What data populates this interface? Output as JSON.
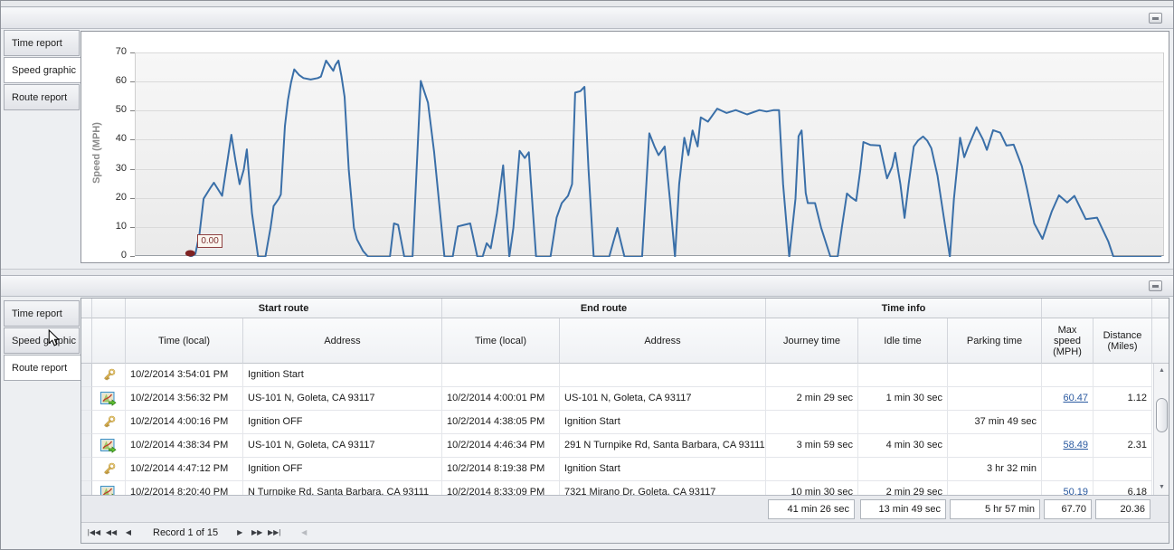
{
  "tabs": {
    "items": [
      "Time report",
      "Speed graphic",
      "Route report"
    ],
    "top_selected": "Speed graphic",
    "bottom_selected": "Route report"
  },
  "chart_data": {
    "type": "line",
    "ylabel": "Speed (MPH)",
    "ylim": [
      0,
      70
    ],
    "yticks": [
      0,
      10,
      20,
      30,
      40,
      50,
      60,
      70
    ],
    "grid": true,
    "line_color": "#3a6fa8",
    "marker": {
      "x_frac": 0.053,
      "value": 0,
      "label": "0.00",
      "color": "#7e2222"
    },
    "series": [
      {
        "name": "Speed",
        "points": [
          [
            0.053,
            0
          ],
          [
            0.058,
            1
          ],
          [
            0.062,
            8
          ],
          [
            0.066,
            20
          ],
          [
            0.073,
            24
          ],
          [
            0.076,
            25.5
          ],
          [
            0.084,
            21
          ],
          [
            0.09,
            35
          ],
          [
            0.093,
            42
          ],
          [
            0.097,
            33
          ],
          [
            0.101,
            25
          ],
          [
            0.105,
            30
          ],
          [
            0.108,
            37
          ],
          [
            0.113,
            15
          ],
          [
            0.119,
            0
          ],
          [
            0.126,
            0
          ],
          [
            0.131,
            10
          ],
          [
            0.134,
            17.5
          ],
          [
            0.139,
            20
          ],
          [
            0.141,
            21.5
          ],
          [
            0.145,
            45
          ],
          [
            0.148,
            54
          ],
          [
            0.151,
            60
          ],
          [
            0.154,
            64.5
          ],
          [
            0.159,
            62.5
          ],
          [
            0.163,
            61.5
          ],
          [
            0.17,
            61
          ],
          [
            0.177,
            61.5
          ],
          [
            0.18,
            62
          ],
          [
            0.185,
            67.5
          ],
          [
            0.189,
            65.5
          ],
          [
            0.192,
            64
          ],
          [
            0.194,
            66
          ],
          [
            0.197,
            67.5
          ],
          [
            0.2,
            62
          ],
          [
            0.203,
            55
          ],
          [
            0.207,
            30
          ],
          [
            0.212,
            10
          ],
          [
            0.215,
            6
          ],
          [
            0.221,
            2
          ],
          [
            0.226,
            0
          ],
          [
            0.247,
            0
          ],
          [
            0.251,
            11.5
          ],
          [
            0.255,
            11
          ],
          [
            0.261,
            0
          ],
          [
            0.269,
            0
          ],
          [
            0.277,
            60.5
          ],
          [
            0.284,
            53
          ],
          [
            0.29,
            36
          ],
          [
            0.3,
            0
          ],
          [
            0.308,
            0
          ],
          [
            0.313,
            10.5
          ],
          [
            0.319,
            11
          ],
          [
            0.325,
            11.5
          ],
          [
            0.332,
            0
          ],
          [
            0.337,
            0
          ],
          [
            0.341,
            4.7
          ],
          [
            0.345,
            3
          ],
          [
            0.351,
            15
          ],
          [
            0.357,
            31.5
          ],
          [
            0.363,
            0
          ],
          [
            0.367,
            10
          ],
          [
            0.373,
            36.5
          ],
          [
            0.378,
            34
          ],
          [
            0.382,
            36
          ],
          [
            0.389,
            0
          ],
          [
            0.403,
            0
          ],
          [
            0.409,
            13.5
          ],
          [
            0.414,
            18.5
          ],
          [
            0.42,
            21
          ],
          [
            0.424,
            25
          ],
          [
            0.427,
            56.5
          ],
          [
            0.432,
            57
          ],
          [
            0.436,
            58.5
          ],
          [
            0.44,
            30
          ],
          [
            0.445,
            0
          ],
          [
            0.46,
            0
          ],
          [
            0.464,
            5
          ],
          [
            0.468,
            10
          ],
          [
            0.475,
            0
          ],
          [
            0.492,
            0
          ],
          [
            0.499,
            42.5
          ],
          [
            0.504,
            38
          ],
          [
            0.508,
            35
          ],
          [
            0.514,
            38
          ],
          [
            0.519,
            20
          ],
          [
            0.524,
            0
          ],
          [
            0.528,
            25
          ],
          [
            0.533,
            41
          ],
          [
            0.537,
            35
          ],
          [
            0.541,
            43.5
          ],
          [
            0.546,
            38
          ],
          [
            0.549,
            48
          ],
          [
            0.556,
            46.5
          ],
          [
            0.565,
            51
          ],
          [
            0.574,
            49.5
          ],
          [
            0.583,
            50.5
          ],
          [
            0.594,
            49
          ],
          [
            0.606,
            50.5
          ],
          [
            0.613,
            50
          ],
          [
            0.62,
            50.5
          ],
          [
            0.625,
            50.5
          ],
          [
            0.629,
            25
          ],
          [
            0.635,
            0
          ],
          [
            0.641,
            20
          ],
          [
            0.644,
            41.5
          ],
          [
            0.647,
            43.5
          ],
          [
            0.651,
            22
          ],
          [
            0.653,
            18.5
          ],
          [
            0.66,
            18.5
          ],
          [
            0.666,
            10
          ],
          [
            0.675,
            0
          ],
          [
            0.682,
            0
          ],
          [
            0.686,
            10
          ],
          [
            0.691,
            21.8
          ],
          [
            0.695,
            20.5
          ],
          [
            0.7,
            19.3
          ],
          [
            0.704,
            30
          ],
          [
            0.707,
            39.5
          ],
          [
            0.714,
            38.5
          ],
          [
            0.723,
            38.3
          ],
          [
            0.73,
            27
          ],
          [
            0.735,
            31
          ],
          [
            0.738,
            35.8
          ],
          [
            0.743,
            25
          ],
          [
            0.747,
            13.4
          ],
          [
            0.751,
            25
          ],
          [
            0.756,
            38
          ],
          [
            0.76,
            40
          ],
          [
            0.765,
            41.4
          ],
          [
            0.769,
            40
          ],
          [
            0.773,
            37.4
          ],
          [
            0.779,
            28
          ],
          [
            0.785,
            14
          ],
          [
            0.791,
            0
          ],
          [
            0.795,
            20
          ],
          [
            0.801,
            41
          ],
          [
            0.805,
            34.3
          ],
          [
            0.809,
            38
          ],
          [
            0.817,
            44.6
          ],
          [
            0.823,
            40.5
          ],
          [
            0.827,
            36.8
          ],
          [
            0.833,
            43.6
          ],
          [
            0.84,
            42.7
          ],
          [
            0.846,
            38.3
          ],
          [
            0.853,
            38.6
          ],
          [
            0.861,
            31.2
          ],
          [
            0.866,
            23.4
          ],
          [
            0.873,
            11.5
          ],
          [
            0.881,
            6.2
          ],
          [
            0.89,
            15.6
          ],
          [
            0.897,
            21.2
          ],
          [
            0.905,
            18.7
          ],
          [
            0.912,
            21
          ],
          [
            0.923,
            13
          ],
          [
            0.934,
            13.5
          ],
          [
            0.945,
            5.3
          ],
          [
            0.95,
            0
          ],
          [
            0.996,
            0
          ]
        ]
      }
    ]
  },
  "table": {
    "groups": [
      {
        "label": "Start route"
      },
      {
        "label": "End route"
      },
      {
        "label": "Time info"
      },
      {
        "label": ""
      }
    ],
    "columns": [
      "Time (local)",
      "Address",
      "Time (local)",
      "Address",
      "Journey time",
      "Idle time",
      "Parking time",
      "Max speed (MPH)",
      "Distance (Miles)"
    ],
    "rows": [
      {
        "icon": "key",
        "start_time": "10/2/2014 3:54:01 PM",
        "start_addr": "Ignition Start",
        "end_time": "",
        "end_addr": "",
        "journey": "",
        "idle": "",
        "parking": "",
        "max_speed": "",
        "distance": ""
      },
      {
        "icon": "route",
        "start_time": "10/2/2014 3:56:32 PM",
        "start_addr": "US-101 N, Goleta, CA 93117",
        "end_time": "10/2/2014 4:00:01 PM",
        "end_addr": "US-101 N, Goleta, CA 93117",
        "journey": "2 min 29 sec",
        "idle": "1 min 30 sec",
        "parking": "",
        "max_speed": "60.47",
        "distance": "1.12"
      },
      {
        "icon": "key",
        "start_time": "10/2/2014 4:00:16 PM",
        "start_addr": "Ignition OFF",
        "end_time": "10/2/2014 4:38:05 PM",
        "end_addr": "Ignition Start",
        "journey": "",
        "idle": "",
        "parking": "37 min 49 sec",
        "max_speed": "",
        "distance": ""
      },
      {
        "icon": "route",
        "start_time": "10/2/2014 4:38:34 PM",
        "start_addr": "US-101 N, Goleta, CA 93117",
        "end_time": "10/2/2014 4:46:34 PM",
        "end_addr": "291 N Turnpike Rd, Santa Barbara, CA 93111",
        "journey": "3 min 59 sec",
        "idle": "4 min 30 sec",
        "parking": "",
        "max_speed": "58.49",
        "distance": "2.31"
      },
      {
        "icon": "key",
        "start_time": "10/2/2014 4:47:12 PM",
        "start_addr": "Ignition OFF",
        "end_time": "10/2/2014 8:19:38 PM",
        "end_addr": "Ignition Start",
        "journey": "",
        "idle": "",
        "parking": "3 hr 32 min",
        "max_speed": "",
        "distance": ""
      },
      {
        "icon": "route",
        "start_time": "10/2/2014 8:20:40 PM",
        "start_addr": "N Turnpike Rd, Santa Barbara, CA 93111",
        "end_time": "10/2/2014 8:33:09 PM",
        "end_addr": "7321 Mirano Dr, Goleta, CA 93117",
        "journey": "10 min 30 sec",
        "idle": "2 min 29 sec",
        "parking": "",
        "max_speed": "50.19",
        "distance": "6.18"
      }
    ],
    "summary": {
      "journey": "41 min 26 sec",
      "idle": "13 min 49 sec",
      "parking": "5 hr 57 min",
      "max_speed": "67.70",
      "distance": "20.36"
    }
  },
  "navigator": {
    "record_text": "Record 1 of 15",
    "first": "|◀◀",
    "prev_page": "◀◀",
    "prev": "◀",
    "next": "▶",
    "next_page": "▶▶",
    "last": "▶▶|",
    "hscroll_left": "◀"
  }
}
